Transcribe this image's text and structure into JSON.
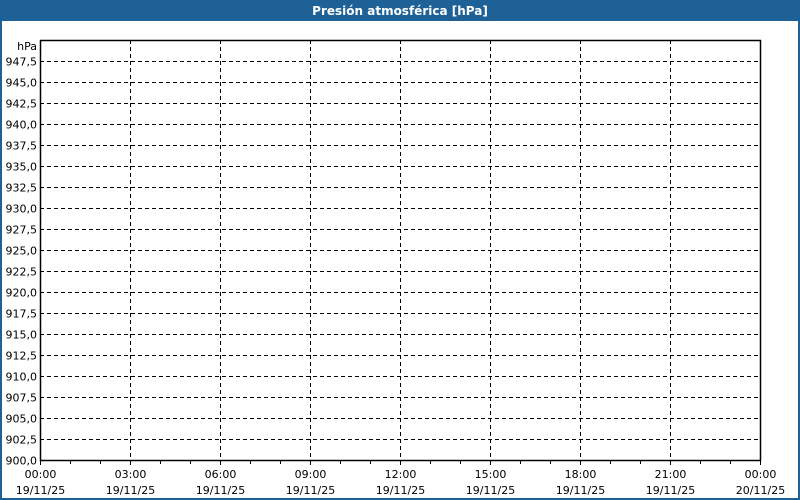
{
  "window": {
    "title": "Presión atmosférica [hPa]",
    "border_color": "#1e6196"
  },
  "chart_data": {
    "type": "line",
    "title": "Presión atmosférica [hPa]",
    "ylabel": "hPa",
    "xlabel": "",
    "ylim": [
      900,
      950
    ],
    "y_ticks": [
      "900,0",
      "902,5",
      "905,0",
      "907,5",
      "910,0",
      "912,5",
      "915,0",
      "917,5",
      "920,0",
      "922,5",
      "925,0",
      "927,5",
      "930,0",
      "932,5",
      "935,0",
      "937,5",
      "940,0",
      "942,5",
      "945,0",
      "947,5"
    ],
    "x_range": [
      "19/11/25 00:00",
      "20/11/25 00:00"
    ],
    "x_ticks": [
      {
        "time": "00:00",
        "date": "19/11/25"
      },
      {
        "time": "03:00",
        "date": "19/11/25"
      },
      {
        "time": "06:00",
        "date": "19/11/25"
      },
      {
        "time": "09:00",
        "date": "19/11/25"
      },
      {
        "time": "12:00",
        "date": "19/11/25"
      },
      {
        "time": "15:00",
        "date": "19/11/25"
      },
      {
        "time": "18:00",
        "date": "19/11/25"
      },
      {
        "time": "21:00",
        "date": "19/11/25"
      },
      {
        "time": "00:00",
        "date": "20/11/25"
      }
    ],
    "grid": true,
    "grid_style": "dashed",
    "minor_x_ticks_hours": 1,
    "series": []
  }
}
